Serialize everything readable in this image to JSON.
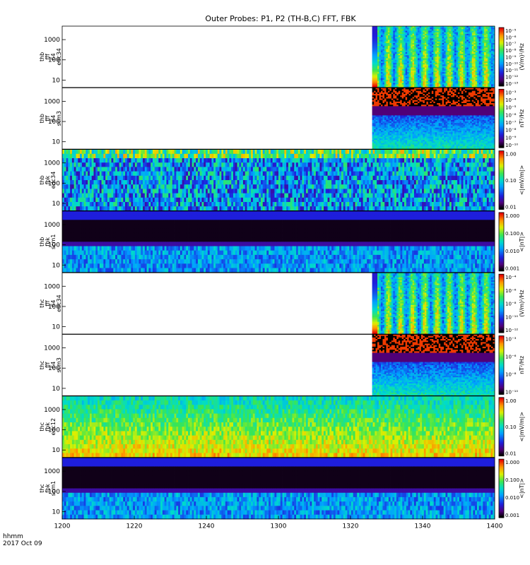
{
  "title": "Outer Probes: P1, P2 (TH-B,C) FFT, FBK",
  "time_label_1": "hhmm",
  "time_label_2": "2017 Oct 09",
  "chart_data": {
    "type": "heatmap",
    "x_ticks": [
      "1200",
      "1220",
      "1240",
      "1300",
      "1320",
      "1340",
      "1400"
    ],
    "panels": [
      {
        "label": [
          "thb",
          "fff",
          "64",
          "edc34"
        ],
        "y_ticks": [
          "10",
          "100",
          "1000"
        ],
        "cb_ticks": [
          "10⁻⁵",
          "10⁻⁶",
          "10⁻⁷",
          "10⁻⁸",
          "10⁻⁹",
          "10⁻¹⁰",
          "10⁻¹¹",
          "10⁻¹²",
          "10⁻¹³"
        ],
        "cb_label": "(V/m)²/Hz",
        "data_start": 1326,
        "mode": "fff_e"
      },
      {
        "label": [
          "thb",
          "fff",
          "64",
          "scm3"
        ],
        "y_ticks": [
          "10",
          "100",
          "1000"
        ],
        "cb_ticks": [
          "10⁻³",
          "10⁻⁴",
          "10⁻⁵",
          "10⁻⁶",
          "10⁻⁷",
          "10⁻⁸",
          "10⁻⁹",
          "10⁻¹⁰"
        ],
        "cb_label": "nT²/Hz",
        "data_start": 1326,
        "mode": "fff_b"
      },
      {
        "label": [
          "thb",
          "fbk",
          "edc34"
        ],
        "y_ticks": [
          "10",
          "100",
          "1000"
        ],
        "cb_ticks": [
          "1.00",
          "0.10",
          "0.01"
        ],
        "cb_label": "<|mV/m|>",
        "data_start": 1200,
        "mode": "fbk_e"
      },
      {
        "label": [
          "thb",
          "fbk",
          "scm1"
        ],
        "y_ticks": [
          "10",
          "100",
          "1000"
        ],
        "cb_ticks": [
          "1.000",
          "0.100",
          "0.010",
          "0.001"
        ],
        "cb_label": "<|nT|>",
        "data_start": 1200,
        "mode": "fbk_b"
      },
      {
        "label": [
          "thc",
          "fff",
          "64",
          "edc34"
        ],
        "y_ticks": [
          "10",
          "100",
          "1000"
        ],
        "cb_ticks": [
          "10⁻⁴",
          "10⁻⁶",
          "10⁻⁸",
          "10⁻¹⁰",
          "10⁻¹²"
        ],
        "cb_label": "(V/m)²/Hz",
        "data_start": 1326,
        "mode": "fff_e2"
      },
      {
        "label": [
          "thc",
          "fff",
          "64",
          "scm3"
        ],
        "y_ticks": [
          "10",
          "100",
          "1000"
        ],
        "cb_ticks": [
          "10⁻³",
          "10⁻⁶",
          "10⁻⁸",
          "10⁻¹⁰"
        ],
        "cb_label": "nT²/Hz",
        "data_start": 1326,
        "mode": "fff_b"
      },
      {
        "label": [
          "thc",
          "fbk",
          "edc12"
        ],
        "y_ticks": [
          "10",
          "100",
          "1000"
        ],
        "cb_ticks": [
          "1.00",
          "0.10",
          "0.01"
        ],
        "cb_label": "<|mV/m|>",
        "data_start": 1200,
        "mode": "fbk_e2"
      },
      {
        "label": [
          "thc",
          "fbk",
          "scm1"
        ],
        "y_ticks": [
          "10",
          "100",
          "1000"
        ],
        "cb_ticks": [
          "1.000",
          "0.100",
          "0.010",
          "0.001"
        ],
        "cb_label": "<|nT|>",
        "data_start": 1200,
        "mode": "fbk_b"
      }
    ]
  }
}
